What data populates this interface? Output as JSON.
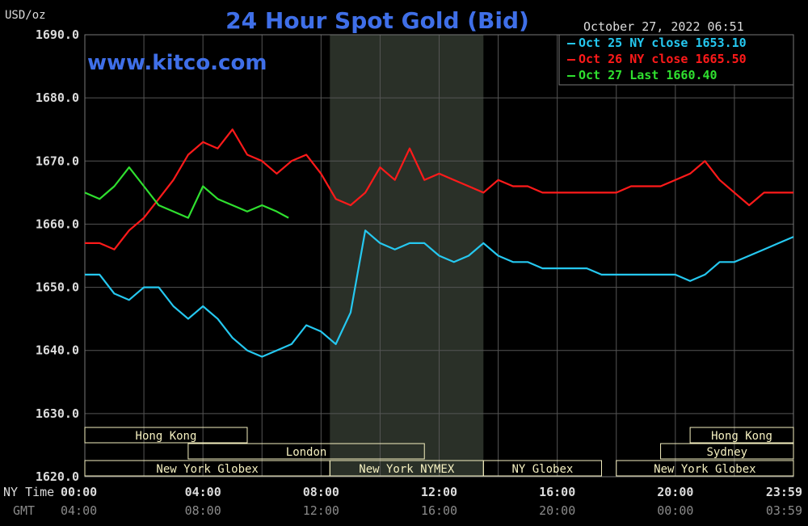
{
  "title": "24 Hour Spot Gold (Bid)",
  "unit_label": "USD/oz",
  "timestamp": "October 27, 2022 06:51",
  "watermark": "www.kitco.com",
  "colors": {
    "background": "#000000",
    "grid": "#555555",
    "title": "#3f6fe8",
    "axis_text": "#dcdcdc",
    "session_band": "#f5f0c0",
    "nymex_shade": "#2a3028"
  },
  "legend": [
    {
      "label": "Oct 25 NY close 1653.10",
      "color": "#25c8f0"
    },
    {
      "label": "Oct 26 NY close 1665.50",
      "color": "#ff1a1a"
    },
    {
      "label": "Oct 27 Last 1660.40",
      "color": "#2fe02f"
    }
  ],
  "x_axis_rows": [
    {
      "label": "NY Time",
      "ticks": [
        "00:00",
        "04:00",
        "08:00",
        "12:00",
        "16:00",
        "20:00",
        "23:59"
      ]
    },
    {
      "label": "GMT",
      "ticks": [
        "04:00",
        "08:00",
        "12:00",
        "16:00",
        "20:00",
        "00:00",
        "03:59"
      ]
    }
  ],
  "sessions": [
    {
      "name": "Hong Kong",
      "row": 0,
      "start": 0.0,
      "end": 5.5
    },
    {
      "name": "Hong Kong",
      "row": 0,
      "start": 20.5,
      "end": 24.0
    },
    {
      "name": "London",
      "row": 1,
      "start": 3.5,
      "end": 11.5
    },
    {
      "name": "Sydney",
      "row": 1,
      "start": 19.5,
      "end": 24.0
    },
    {
      "name": "New York Globex",
      "row": 2,
      "start": 0.0,
      "end": 8.3
    },
    {
      "name": "New York NYMEX",
      "row": 2,
      "start": 8.3,
      "end": 13.5
    },
    {
      "name": "NY Globex",
      "row": 2,
      "start": 13.5,
      "end": 17.5
    },
    {
      "name": "New York Globex",
      "row": 2,
      "start": 18.0,
      "end": 24.0
    }
  ],
  "chart_data": {
    "type": "line",
    "title": "24 Hour Spot Gold (Bid)",
    "ylabel": "USD/oz",
    "xlabel": "NY Time",
    "xlim": [
      0,
      24
    ],
    "ylim": [
      1620,
      1690
    ],
    "y_ticks": [
      "1690.0",
      "1680.0",
      "1670.0",
      "1660.0",
      "1650.0",
      "1640.0",
      "1630.0",
      "1620.0"
    ],
    "y_tick_values": [
      1690,
      1680,
      1670,
      1660,
      1650,
      1640,
      1630,
      1620
    ],
    "grid": true,
    "legend_position": "top-right",
    "shaded_region": {
      "start": 8.3,
      "end": 13.5
    },
    "series": [
      {
        "name": "Oct 25 NY close 1653.10",
        "color": "#25c8f0",
        "x": [
          0,
          0.5,
          1,
          1.5,
          2,
          2.5,
          3,
          3.5,
          4,
          4.5,
          5,
          5.5,
          6,
          6.5,
          7,
          7.5,
          8,
          8.5,
          9,
          9.5,
          10,
          10.5,
          11,
          11.5,
          12,
          12.5,
          13,
          13.5,
          14,
          14.5,
          15,
          15.5,
          16,
          16.5,
          17,
          17.5,
          18,
          18.5,
          19,
          19.5,
          20,
          20.5,
          21,
          21.5,
          22,
          22.5,
          23,
          23.5,
          24
        ],
        "y": [
          1652,
          1652,
          1649,
          1648,
          1650,
          1650,
          1647,
          1645,
          1647,
          1645,
          1642,
          1640,
          1639,
          1640,
          1641,
          1644,
          1643,
          1641,
          1646,
          1659,
          1657,
          1656,
          1657,
          1657,
          1655,
          1654,
          1655,
          1657,
          1655,
          1654,
          1654,
          1653,
          1653,
          1653,
          1653,
          1652,
          1652,
          1652,
          1652,
          1652,
          1652,
          1651,
          1652,
          1654,
          1654,
          1655,
          1656,
          1657,
          1658
        ]
      },
      {
        "name": "Oct 26 NY close 1665.50",
        "color": "#ff1a1a",
        "x": [
          0,
          0.5,
          1,
          1.5,
          2,
          2.5,
          3,
          3.5,
          4,
          4.5,
          5,
          5.5,
          6,
          6.5,
          7,
          7.5,
          8,
          8.5,
          9,
          9.5,
          10,
          10.5,
          11,
          11.5,
          12,
          12.5,
          13,
          13.5,
          14,
          14.5,
          15,
          15.5,
          16,
          16.5,
          17,
          17.5,
          18,
          18.5,
          19,
          19.5,
          20,
          20.5,
          21,
          21.5,
          22,
          22.5,
          23,
          23.5,
          24
        ],
        "y": [
          1657,
          1657,
          1656,
          1659,
          1661,
          1664,
          1667,
          1671,
          1673,
          1672,
          1675,
          1671,
          1670,
          1668,
          1670,
          1671,
          1668,
          1664,
          1663,
          1665,
          1669,
          1667,
          1672,
          1667,
          1668,
          1667,
          1666,
          1665,
          1667,
          1666,
          1666,
          1665,
          1665,
          1665,
          1665,
          1665,
          1665,
          1666,
          1666,
          1666,
          1667,
          1668,
          1670,
          1667,
          1665,
          1663,
          1665,
          1665,
          1665
        ]
      },
      {
        "name": "Oct 27 Last 1660.40",
        "color": "#2fe02f",
        "x": [
          0,
          0.5,
          1,
          1.5,
          2,
          2.5,
          3,
          3.5,
          4,
          4.5,
          5,
          5.5,
          6,
          6.5,
          6.9
        ],
        "y": [
          1665,
          1664,
          1666,
          1669,
          1666,
          1663,
          1662,
          1661,
          1666,
          1664,
          1663,
          1662,
          1663,
          1662,
          1661
        ]
      }
    ]
  }
}
